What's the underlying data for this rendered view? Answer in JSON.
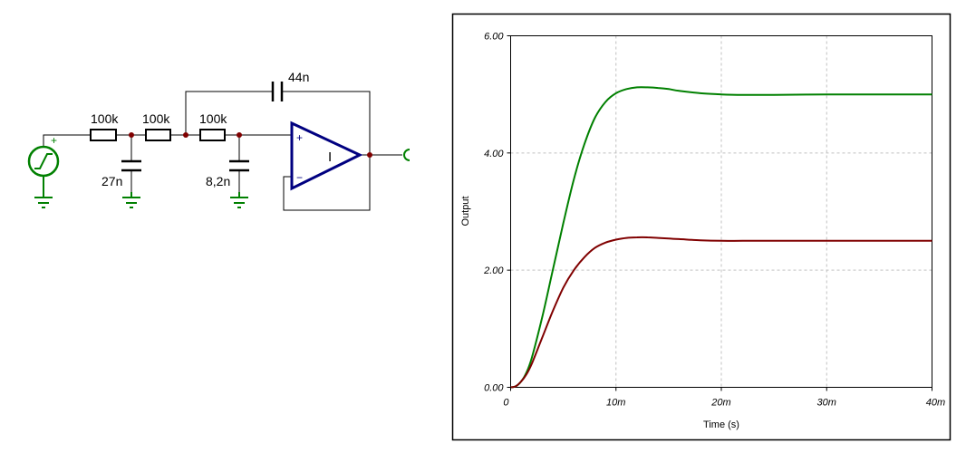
{
  "schematic": {
    "colors": {
      "wire": "#000000",
      "component": "#000000",
      "opamp": "#000080",
      "source": "#008000",
      "junction": "#800000"
    },
    "components": [
      {
        "kind": "resistor",
        "label": "100k"
      },
      {
        "kind": "resistor",
        "label": "100k"
      },
      {
        "kind": "resistor",
        "label": "100k"
      },
      {
        "kind": "capacitor",
        "label": "44n"
      },
      {
        "kind": "capacitor",
        "label": "27n"
      },
      {
        "kind": "capacitor",
        "label": "8,2n"
      }
    ],
    "source": {
      "kind": "step-voltage-source",
      "icon": "step-source-icon",
      "polarity": "+"
    },
    "opamp": {
      "kind": "op-amp",
      "plus": "+",
      "minus": "−",
      "marker": "I"
    },
    "output_icon": "output-terminal-icon"
  },
  "chart_data": {
    "type": "line",
    "xlabel": "Time (s)",
    "ylabel": "Output",
    "xlim": [
      0,
      0.04
    ],
    "ylim": [
      0,
      6
    ],
    "x_ticks": [
      {
        "value": 0,
        "label": "0"
      },
      {
        "value": 0.01,
        "label": "10m"
      },
      {
        "value": 0.02,
        "label": "20m"
      },
      {
        "value": 0.03,
        "label": "30m"
      },
      {
        "value": 0.04,
        "label": "40m"
      }
    ],
    "y_ticks": [
      {
        "value": 0,
        "label": "0.00"
      },
      {
        "value": 2,
        "label": "2.00"
      },
      {
        "value": 4,
        "label": "4.00"
      },
      {
        "value": 6,
        "label": "6.00"
      }
    ],
    "grid": true,
    "series": [
      {
        "color": "#008000",
        "x": [
          0,
          0.0005,
          0.001,
          0.0015,
          0.002,
          0.003,
          0.004,
          0.005,
          0.006,
          0.007,
          0.008,
          0.009,
          0.01,
          0.011,
          0.012,
          0.013,
          0.014,
          0.015,
          0.016,
          0.018,
          0.02,
          0.022,
          0.025,
          0.03,
          0.035,
          0.04
        ],
        "y": [
          0,
          0.02,
          0.1,
          0.25,
          0.5,
          1.2,
          2.0,
          2.8,
          3.55,
          4.15,
          4.6,
          4.87,
          5.02,
          5.09,
          5.12,
          5.12,
          5.11,
          5.09,
          5.06,
          5.02,
          5.0,
          4.99,
          4.99,
          5.0,
          5.0,
          5.0
        ]
      },
      {
        "color": "#800000",
        "x": [
          0,
          0.0005,
          0.001,
          0.0015,
          0.002,
          0.003,
          0.004,
          0.005,
          0.006,
          0.007,
          0.008,
          0.009,
          0.01,
          0.011,
          0.012,
          0.013,
          0.014,
          0.015,
          0.016,
          0.018,
          0.02,
          0.022,
          0.025,
          0.03,
          0.035,
          0.04
        ],
        "y": [
          0,
          0.02,
          0.1,
          0.22,
          0.4,
          0.85,
          1.3,
          1.7,
          2.0,
          2.22,
          2.38,
          2.47,
          2.52,
          2.55,
          2.56,
          2.56,
          2.55,
          2.54,
          2.53,
          2.51,
          2.5,
          2.5,
          2.5,
          2.5,
          2.5,
          2.5
        ]
      }
    ]
  }
}
